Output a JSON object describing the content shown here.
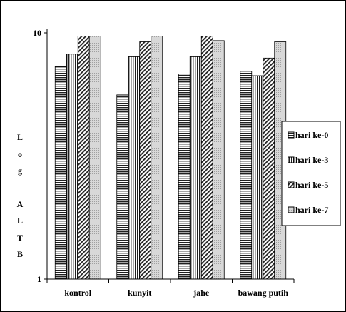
{
  "chart_data": {
    "type": "bar",
    "title": "",
    "xlabel": "",
    "ylabel": "Log ALTB",
    "ylabel_chars": [
      "L",
      "o",
      "g",
      "A",
      "L",
      "T",
      "B"
    ],
    "y_scale": "log",
    "ylim": [
      1,
      10
    ],
    "y_ticks": [
      {
        "value": 10,
        "label": "10"
      },
      {
        "value": 1,
        "label": "1"
      }
    ],
    "categories": [
      "kontrol",
      "kunyit",
      "jahe",
      "bawang putih"
    ],
    "series": [
      {
        "name": "hari ke-0",
        "values": [
          7.3,
          5.6,
          6.8,
          7.0
        ]
      },
      {
        "name": "hari ke-3",
        "values": [
          8.2,
          8.0,
          8.0,
          6.7
        ]
      },
      {
        "name": "hari ke-5",
        "values": [
          9.7,
          9.2,
          9.7,
          7.9
        ]
      },
      {
        "name": "hari ke-7",
        "values": [
          9.7,
          9.7,
          9.3,
          9.2
        ]
      }
    ],
    "legend_position": "right",
    "grid": false
  }
}
